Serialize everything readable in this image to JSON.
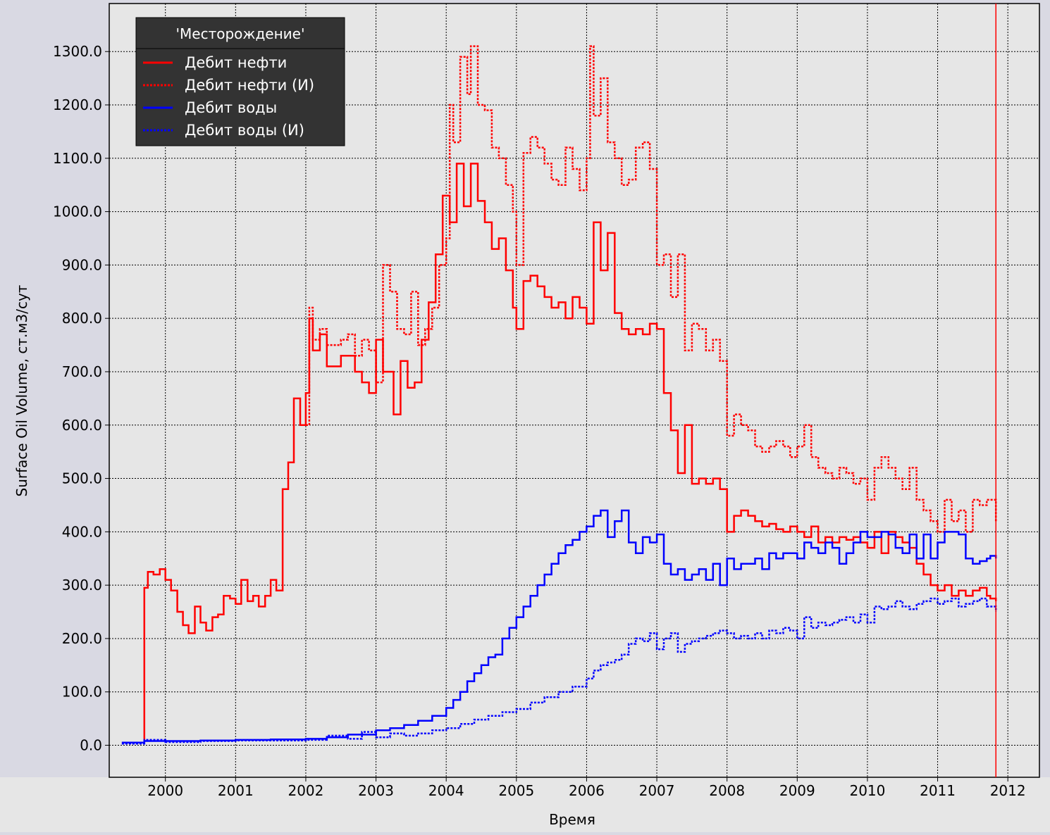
{
  "colors": {
    "oil": "#ff0000",
    "water": "#0000ff",
    "plot_background": "#e6e6e6",
    "outer_background": "#d9d9e3",
    "legend_background": "#333333",
    "grid": "#000000",
    "marker_line": "#ff0000"
  },
  "chart_data": {
    "type": "line",
    "step": true,
    "title": "",
    "xlabel": "Время",
    "ylabel": "Surface Oil Volume, ст.м3/сут",
    "xlim": [
      1999.2,
      2012.45
    ],
    "ylim": [
      -60,
      1390
    ],
    "x_ticks": [
      2000,
      2001,
      2002,
      2003,
      2004,
      2005,
      2006,
      2007,
      2008,
      2009,
      2010,
      2011,
      2012
    ],
    "x_tick_labels": [
      "2000",
      "2001",
      "2002",
      "2003",
      "2004",
      "2005",
      "2006",
      "2007",
      "2008",
      "2009",
      "2010",
      "2011",
      "2012"
    ],
    "y_ticks": [
      0,
      100,
      200,
      300,
      400,
      500,
      600,
      700,
      800,
      900,
      1000,
      1100,
      1200,
      1300
    ],
    "y_tick_labels": [
      "0.0",
      "100.0",
      "200.0",
      "300.0",
      "400.0",
      "500.0",
      "600.0",
      "700.0",
      "800.0",
      "900.0",
      "1000.0",
      "1100.0",
      "1200.0",
      "1300.0"
    ],
    "grid": true,
    "legend": {
      "title": "'Месторождение'",
      "position": "top-left"
    },
    "vertical_marker_x": 2011.83,
    "series": [
      {
        "name": "Дебит нефти",
        "color": "#ff0000",
        "dashed": false,
        "x": [
          1999.38,
          1999.7,
          1999.75,
          1999.83,
          1999.92,
          2000.0,
          2000.08,
          2000.17,
          2000.25,
          2000.33,
          2000.42,
          2000.5,
          2000.58,
          2000.67,
          2000.75,
          2000.83,
          2000.92,
          2001.0,
          2001.08,
          2001.17,
          2001.25,
          2001.33,
          2001.42,
          2001.5,
          2001.58,
          2001.67,
          2001.75,
          2001.83,
          2001.92,
          2002.0,
          2002.05,
          2002.1,
          2002.2,
          2002.3,
          2002.5,
          2002.7,
          2002.8,
          2002.9,
          2003.0,
          2003.1,
          2003.25,
          2003.35,
          2003.45,
          2003.55,
          2003.65,
          2003.75,
          2003.85,
          2003.95,
          2004.05,
          2004.15,
          2004.25,
          2004.35,
          2004.45,
          2004.55,
          2004.65,
          2004.75,
          2004.85,
          2004.95,
          2005.0,
          2005.1,
          2005.2,
          2005.3,
          2005.4,
          2005.5,
          2005.6,
          2005.7,
          2005.8,
          2005.9,
          2006.0,
          2006.1,
          2006.2,
          2006.3,
          2006.4,
          2006.5,
          2006.6,
          2006.7,
          2006.8,
          2006.9,
          2007.0,
          2007.1,
          2007.2,
          2007.3,
          2007.4,
          2007.5,
          2007.6,
          2007.7,
          2007.8,
          2007.9,
          2008.0,
          2008.1,
          2008.2,
          2008.3,
          2008.4,
          2008.5,
          2008.6,
          2008.7,
          2008.8,
          2008.9,
          2009.0,
          2009.1,
          2009.2,
          2009.3,
          2009.4,
          2009.5,
          2009.6,
          2009.7,
          2009.8,
          2009.9,
          2010.0,
          2010.1,
          2010.2,
          2010.3,
          2010.4,
          2010.5,
          2010.6,
          2010.7,
          2010.8,
          2010.9,
          2011.0,
          2011.1,
          2011.2,
          2011.3,
          2011.4,
          2011.5,
          2011.6,
          2011.7,
          2011.75,
          2011.83
        ],
        "y": [
          5,
          295,
          325,
          320,
          330,
          310,
          290,
          250,
          225,
          210,
          260,
          230,
          215,
          240,
          245,
          280,
          275,
          265,
          310,
          270,
          280,
          260,
          280,
          310,
          290,
          480,
          530,
          650,
          600,
          660,
          800,
          740,
          770,
          710,
          730,
          700,
          680,
          660,
          760,
          700,
          620,
          720,
          670,
          680,
          760,
          830,
          920,
          1030,
          980,
          1090,
          1010,
          1090,
          1020,
          980,
          930,
          950,
          890,
          820,
          780,
          870,
          880,
          860,
          840,
          820,
          830,
          800,
          840,
          820,
          790,
          980,
          890,
          960,
          810,
          780,
          770,
          780,
          770,
          790,
          780,
          660,
          590,
          510,
          600,
          490,
          500,
          490,
          500,
          480,
          400,
          430,
          440,
          430,
          420,
          410,
          415,
          405,
          400,
          410,
          400,
          390,
          410,
          380,
          390,
          380,
          390,
          385,
          390,
          380,
          370,
          400,
          360,
          400,
          390,
          380,
          370,
          340,
          320,
          300,
          290,
          300,
          280,
          290,
          280,
          290,
          295,
          280,
          275,
          270
        ]
      },
      {
        "name": "Дебит нефти (И)",
        "color": "#ff0000",
        "dashed": true,
        "x": [
          2002.0,
          2002.05,
          2002.1,
          2002.2,
          2002.3,
          2002.5,
          2002.6,
          2002.7,
          2002.8,
          2002.9,
          2003.0,
          2003.1,
          2003.2,
          2003.3,
          2003.4,
          2003.5,
          2003.6,
          2003.7,
          2003.8,
          2003.9,
          2004.0,
          2004.05,
          2004.1,
          2004.2,
          2004.3,
          2004.35,
          2004.45,
          2004.55,
          2004.65,
          2004.75,
          2004.85,
          2004.95,
          2005.0,
          2005.1,
          2005.2,
          2005.3,
          2005.4,
          2005.5,
          2005.6,
          2005.7,
          2005.8,
          2005.9,
          2006.0,
          2006.05,
          2006.1,
          2006.2,
          2006.3,
          2006.4,
          2006.5,
          2006.6,
          2006.7,
          2006.8,
          2006.9,
          2007.0,
          2007.1,
          2007.2,
          2007.3,
          2007.4,
          2007.5,
          2007.6,
          2007.7,
          2007.8,
          2007.9,
          2008.0,
          2008.1,
          2008.2,
          2008.3,
          2008.4,
          2008.5,
          2008.6,
          2008.7,
          2008.8,
          2008.9,
          2009.0,
          2009.1,
          2009.2,
          2009.3,
          2009.4,
          2009.5,
          2009.6,
          2009.7,
          2009.8,
          2009.9,
          2010.0,
          2010.1,
          2010.2,
          2010.3,
          2010.4,
          2010.5,
          2010.6,
          2010.7,
          2010.8,
          2010.9,
          2011.0,
          2011.1,
          2011.2,
          2011.3,
          2011.4,
          2011.5,
          2011.6,
          2011.7,
          2011.83
        ],
        "y": [
          600,
          820,
          760,
          780,
          750,
          760,
          770,
          730,
          760,
          740,
          680,
          900,
          850,
          780,
          770,
          850,
          750,
          780,
          820,
          900,
          950,
          1200,
          1130,
          1290,
          1220,
          1310,
          1200,
          1190,
          1120,
          1100,
          1050,
          1000,
          900,
          1110,
          1140,
          1120,
          1090,
          1060,
          1050,
          1120,
          1080,
          1040,
          1100,
          1310,
          1180,
          1250,
          1130,
          1100,
          1050,
          1060,
          1120,
          1130,
          1080,
          900,
          920,
          840,
          920,
          740,
          790,
          780,
          740,
          760,
          720,
          580,
          620,
          600,
          590,
          560,
          550,
          560,
          570,
          560,
          540,
          560,
          600,
          540,
          520,
          510,
          500,
          520,
          510,
          490,
          500,
          460,
          520,
          540,
          520,
          500,
          480,
          520,
          460,
          440,
          420,
          400,
          460,
          420,
          440,
          400,
          460,
          450,
          460,
          420
        ]
      },
      {
        "name": "Дебит воды",
        "color": "#0000ff",
        "dashed": false,
        "x": [
          1999.38,
          1999.7,
          2000.0,
          2000.5,
          2001.0,
          2001.5,
          2002.0,
          2002.3,
          2002.6,
          2003.0,
          2003.2,
          2003.4,
          2003.6,
          2003.8,
          2004.0,
          2004.1,
          2004.2,
          2004.3,
          2004.4,
          2004.5,
          2004.6,
          2004.7,
          2004.8,
          2004.9,
          2005.0,
          2005.1,
          2005.2,
          2005.3,
          2005.4,
          2005.5,
          2005.6,
          2005.7,
          2005.8,
          2005.9,
          2006.0,
          2006.1,
          2006.2,
          2006.3,
          2006.4,
          2006.5,
          2006.6,
          2006.7,
          2006.8,
          2006.9,
          2007.0,
          2007.1,
          2007.2,
          2007.3,
          2007.4,
          2007.5,
          2007.6,
          2007.7,
          2007.8,
          2007.9,
          2008.0,
          2008.1,
          2008.2,
          2008.3,
          2008.4,
          2008.5,
          2008.6,
          2008.7,
          2008.8,
          2008.9,
          2009.0,
          2009.1,
          2009.2,
          2009.3,
          2009.4,
          2009.5,
          2009.6,
          2009.7,
          2009.8,
          2009.9,
          2010.0,
          2010.1,
          2010.2,
          2010.3,
          2010.4,
          2010.5,
          2010.6,
          2010.7,
          2010.8,
          2010.9,
          2011.0,
          2011.1,
          2011.2,
          2011.3,
          2011.4,
          2011.5,
          2011.6,
          2011.7,
          2011.75,
          2011.83
        ],
        "y": [
          5,
          8,
          8,
          9,
          10,
          11,
          12,
          15,
          20,
          28,
          32,
          38,
          46,
          55,
          70,
          85,
          100,
          120,
          135,
          150,
          165,
          170,
          200,
          220,
          240,
          260,
          280,
          300,
          320,
          340,
          360,
          375,
          385,
          400,
          410,
          430,
          440,
          390,
          420,
          440,
          380,
          360,
          390,
          380,
          395,
          340,
          320,
          330,
          310,
          320,
          330,
          310,
          340,
          300,
          350,
          330,
          340,
          340,
          350,
          330,
          360,
          350,
          360,
          360,
          350,
          380,
          370,
          360,
          380,
          370,
          340,
          360,
          380,
          400,
          390,
          390,
          400,
          395,
          370,
          360,
          395,
          350,
          395,
          350,
          380,
          400,
          400,
          395,
          350,
          340,
          345,
          350,
          355,
          350
        ]
      },
      {
        "name": "Дебит воды (И)",
        "color": "#0000ff",
        "dashed": true,
        "x": [
          1999.38,
          1999.7,
          2000.0,
          2000.5,
          2001.0,
          2001.5,
          2002.0,
          2002.3,
          2002.6,
          2002.8,
          2003.0,
          2003.2,
          2003.4,
          2003.6,
          2003.8,
          2004.0,
          2004.2,
          2004.4,
          2004.6,
          2004.8,
          2005.0,
          2005.2,
          2005.4,
          2005.6,
          2005.8,
          2006.0,
          2006.1,
          2006.2,
          2006.3,
          2006.4,
          2006.5,
          2006.6,
          2006.7,
          2006.8,
          2006.9,
          2007.0,
          2007.1,
          2007.2,
          2007.3,
          2007.4,
          2007.5,
          2007.6,
          2007.7,
          2007.8,
          2007.9,
          2008.0,
          2008.1,
          2008.2,
          2008.3,
          2008.4,
          2008.5,
          2008.6,
          2008.7,
          2008.8,
          2008.9,
          2009.0,
          2009.1,
          2009.2,
          2009.3,
          2009.4,
          2009.5,
          2009.6,
          2009.7,
          2009.8,
          2009.9,
          2010.0,
          2010.1,
          2010.2,
          2010.3,
          2010.4,
          2010.5,
          2010.6,
          2010.7,
          2010.8,
          2010.9,
          2011.0,
          2011.1,
          2011.2,
          2011.3,
          2011.4,
          2011.5,
          2011.6,
          2011.7,
          2011.83
        ],
        "y": [
          3,
          10,
          6,
          8,
          9,
          9,
          10,
          18,
          12,
          25,
          15,
          22,
          18,
          22,
          28,
          32,
          40,
          48,
          55,
          62,
          68,
          80,
          90,
          100,
          110,
          125,
          140,
          150,
          155,
          160,
          170,
          190,
          200,
          195,
          210,
          180,
          200,
          210,
          175,
          190,
          195,
          200,
          205,
          210,
          215,
          210,
          200,
          205,
          200,
          210,
          200,
          215,
          210,
          220,
          215,
          200,
          240,
          220,
          230,
          225,
          230,
          235,
          240,
          230,
          245,
          230,
          260,
          255,
          260,
          270,
          260,
          255,
          265,
          270,
          275,
          265,
          270,
          275,
          260,
          265,
          270,
          275,
          260,
          250
        ]
      }
    ]
  }
}
